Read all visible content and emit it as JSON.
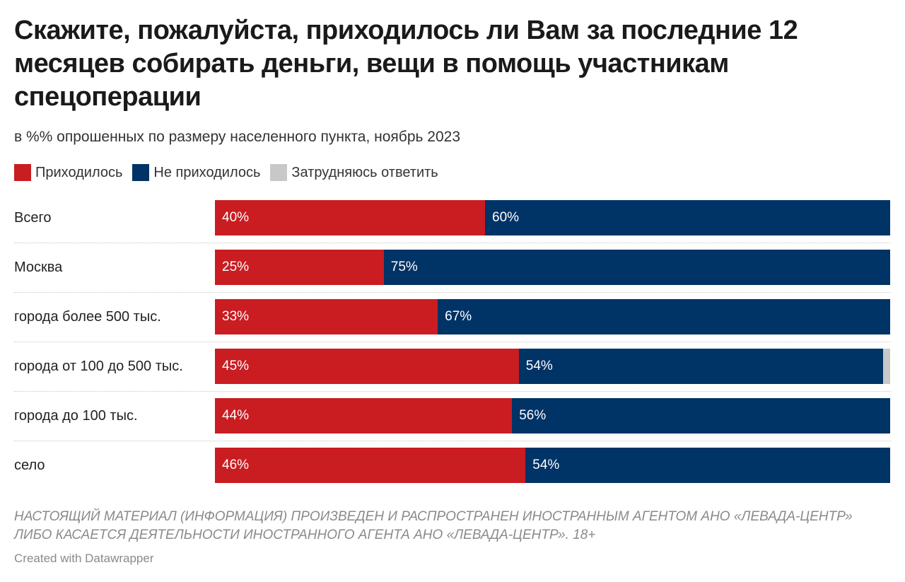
{
  "title": "Скажите, пожалуйста, приходилось ли Вам за последние 12 месяцев собирать деньги, вещи в помощь участникам спецоперации",
  "subtitle": "в %% опрошенных по размеру населенного пункта, ноябрь 2023",
  "footnote": "НАСТОЯЩИЙ МАТЕРИАЛ (ИНФОРМАЦИЯ) ПРОИЗВЕДЕН И РАСПРОСТРАНЕН ИНОСТРАННЫМ АГЕНТОМ АНО «ЛЕВАДА-ЦЕНТР» ЛИБО КАСАЕТСЯ ДЕЯТЕЛЬНОСТИ ИНОСТРАННОГО АГЕНТА АНО «ЛЕВАДА-ЦЕНТР». 18+",
  "credit": "Created with Datawrapper",
  "colors": {
    "yes": "#c91d22",
    "no": "#003366",
    "unsure": "#c8c8c8"
  },
  "chart_data": {
    "type": "bar",
    "orientation": "horizontal",
    "stacked": true,
    "categories": [
      "Всего",
      "Москва",
      "города более 500 тыс.",
      "города от 100 до 500 тыс.",
      "города до 100 тыс.",
      "село"
    ],
    "series": [
      {
        "name": "Приходилось",
        "values": [
          40,
          25,
          33,
          45,
          44,
          46
        ],
        "labels": [
          "40%",
          "25%",
          "33%",
          "45%",
          "44%",
          "46%"
        ]
      },
      {
        "name": "Не приходилось",
        "values": [
          60,
          75,
          67,
          54,
          56,
          54
        ],
        "labels": [
          "60%",
          "75%",
          "67%",
          "54%",
          "56%",
          "54%"
        ]
      },
      {
        "name": "Затрудняюсь ответить",
        "values": [
          0,
          0,
          0,
          1,
          0,
          0
        ]
      }
    ],
    "xlim": [
      0,
      100
    ],
    "legend_position": "top-left",
    "grid": false
  }
}
